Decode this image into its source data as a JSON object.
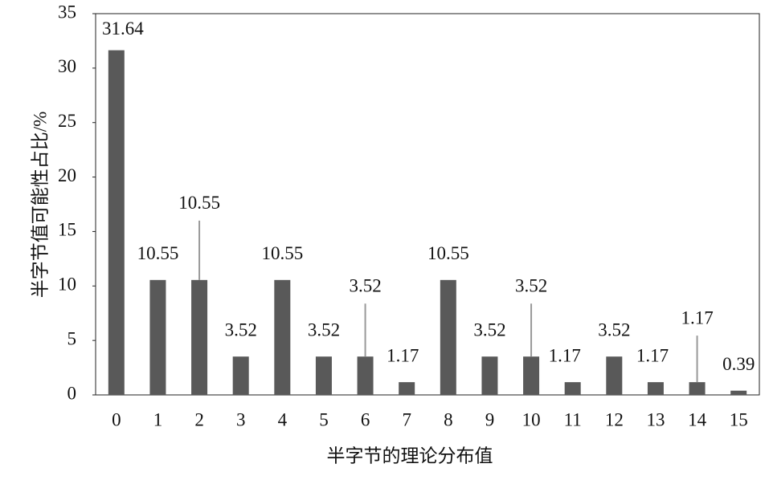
{
  "chart_data": {
    "type": "bar",
    "x_label": "半字节的理论分布值",
    "y_label": "半字节值可能性占比/%",
    "categories": [
      "0",
      "1",
      "2",
      "3",
      "4",
      "5",
      "6",
      "7",
      "8",
      "9",
      "10",
      "11",
      "12",
      "13",
      "14",
      "15"
    ],
    "values": [
      31.64,
      10.55,
      10.55,
      3.52,
      10.55,
      3.52,
      3.52,
      1.17,
      10.55,
      3.52,
      3.52,
      1.17,
      3.52,
      1.17,
      1.17,
      0.39
    ],
    "color": "#595959",
    "ylim": [
      0,
      35
    ],
    "yticks": [
      0,
      5,
      10,
      15,
      20,
      25,
      30,
      35
    ],
    "grid": false
  }
}
